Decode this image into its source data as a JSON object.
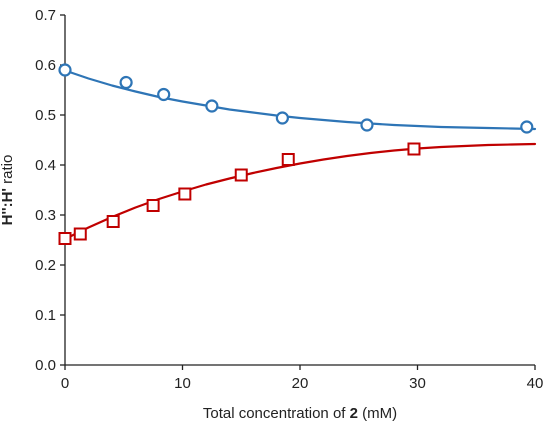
{
  "chart_data": {
    "type": "scatter",
    "xlabel": "Total concentration of",
    "xlabel_bold": "2",
    "xlabel_units": "(mM)",
    "ylabel_bold": "H'':H'",
    "ylabel_rest": "ratio",
    "xlim": [
      0,
      40
    ],
    "ylim": [
      0.0,
      0.7
    ],
    "xticks": [
      0,
      10,
      20,
      30,
      40
    ],
    "xtick_labels": [
      "0",
      "10",
      "20",
      "30",
      "40"
    ],
    "yticks": [
      0.0,
      0.1,
      0.2,
      0.3,
      0.4,
      0.5,
      0.6,
      0.7
    ],
    "ytick_labels": [
      "0.0",
      "0.1",
      "0.2",
      "0.3",
      "0.4",
      "0.5",
      "0.6",
      "0.7"
    ],
    "grid": false,
    "legend": "none",
    "series": [
      {
        "marker": "circle",
        "color": "#2e75b6",
        "points": [
          [
            0,
            0.59
          ],
          [
            5.2,
            0.565
          ],
          [
            8.4,
            0.541
          ],
          [
            12.5,
            0.518
          ],
          [
            18.5,
            0.494
          ],
          [
            25.7,
            0.48
          ],
          [
            39.3,
            0.476
          ]
        ],
        "fit": [
          [
            0,
            0.589
          ],
          [
            2,
            0.573
          ],
          [
            4,
            0.559
          ],
          [
            6,
            0.547
          ],
          [
            8,
            0.536
          ],
          [
            10,
            0.527
          ],
          [
            12,
            0.519
          ],
          [
            14,
            0.511
          ],
          [
            16,
            0.505
          ],
          [
            18,
            0.499
          ],
          [
            20,
            0.494
          ],
          [
            22,
            0.49
          ],
          [
            24,
            0.486
          ],
          [
            26,
            0.483
          ],
          [
            28,
            0.48
          ],
          [
            30,
            0.478
          ],
          [
            32,
            0.476
          ],
          [
            34,
            0.475
          ],
          [
            36,
            0.474
          ],
          [
            38,
            0.473
          ],
          [
            40,
            0.472
          ]
        ]
      },
      {
        "marker": "square",
        "color": "#c00000",
        "points": [
          [
            0,
            0.253
          ],
          [
            1.3,
            0.262
          ],
          [
            4.1,
            0.287
          ],
          [
            7.5,
            0.319
          ],
          [
            10.2,
            0.342
          ],
          [
            15.0,
            0.38
          ],
          [
            19.0,
            0.411
          ],
          [
            29.7,
            0.432
          ]
        ],
        "fit": [
          [
            0,
            0.252
          ],
          [
            2,
            0.275
          ],
          [
            4,
            0.296
          ],
          [
            6,
            0.315
          ],
          [
            8,
            0.332
          ],
          [
            10,
            0.347
          ],
          [
            12,
            0.361
          ],
          [
            14,
            0.373
          ],
          [
            16,
            0.384
          ],
          [
            18,
            0.394
          ],
          [
            20,
            0.403
          ],
          [
            22,
            0.411
          ],
          [
            24,
            0.418
          ],
          [
            26,
            0.424
          ],
          [
            28,
            0.429
          ],
          [
            30,
            0.433
          ],
          [
            32,
            0.436
          ],
          [
            34,
            0.438
          ],
          [
            36,
            0.44
          ],
          [
            38,
            0.441
          ],
          [
            40,
            0.442
          ]
        ]
      }
    ]
  }
}
